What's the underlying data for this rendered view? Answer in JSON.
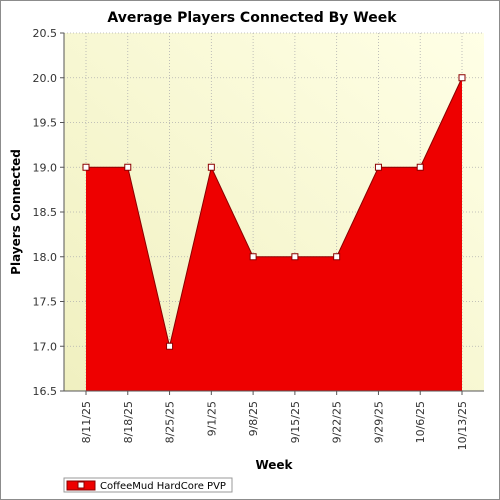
{
  "chart_data": {
    "type": "area",
    "title": "Average Players Connected By Week",
    "xlabel": "Week",
    "ylabel": "Players Connected",
    "categories": [
      "8/11/25",
      "8/18/25",
      "8/25/25",
      "9/1/25",
      "9/8/25",
      "9/15/25",
      "9/22/25",
      "9/29/25",
      "10/6/25",
      "10/13/25"
    ],
    "series": [
      {
        "name": "CoffeeMud HardCore PVP",
        "values": [
          19.0,
          19.0,
          17.0,
          19.0,
          18.0,
          18.0,
          18.0,
          19.0,
          19.0,
          20.0
        ]
      }
    ],
    "ylim": [
      16.5,
      20.5
    ],
    "yticks": [
      16.5,
      17.0,
      17.5,
      18.0,
      18.5,
      19.0,
      19.5,
      20.0,
      20.5
    ],
    "grid": true,
    "legend_position": "bottom-left",
    "colors": {
      "series_fill": "#ee0000",
      "series_line": "#8b0000",
      "marker_fill": "#ffffff",
      "plot_bg_light": "#ffffe6",
      "plot_bg_dark": "#f0f0c0",
      "grid": "#b0b0b0"
    }
  }
}
